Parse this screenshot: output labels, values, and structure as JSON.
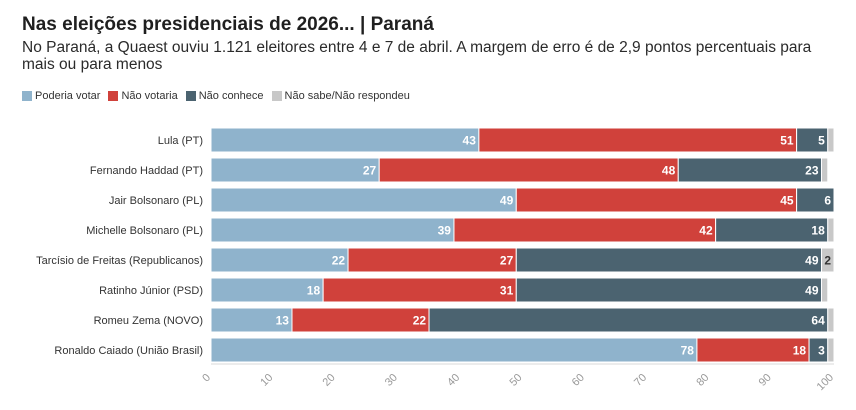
{
  "header": {
    "title": "Nas eleições presidenciais de 2026... | Paraná",
    "subtitle": "No Paraná, a Quaest ouviu 1.121 eleitores entre 4 e 7 de abril. A margem de erro é de 2,9 pontos percentuais para mais ou para menos"
  },
  "legend": [
    {
      "label": "Poderia votar",
      "color": "#8fb3cc"
    },
    {
      "label": "Não votaria",
      "color": "#d0413b"
    },
    {
      "label": "Não conhece",
      "color": "#4b6370"
    },
    {
      "label": "Não sabe/Não respondeu",
      "color": "#c8c8c8"
    }
  ],
  "chart_data": {
    "type": "bar",
    "stacked": true,
    "orientation": "horizontal",
    "title": "Nas eleições presidenciais de 2026... | Paraná",
    "categories": [
      "Lula (PT)",
      "Fernando Haddad (PT)",
      "Jair Bolsonaro (PL)",
      "Michelle Bolsonaro (PL)",
      "Tarcísio de Freitas (Republicanos)",
      "Ratinho Júnior (PSD)",
      "Romeu Zema (NOVO)",
      "Ronaldo Caiado (União Brasil)"
    ],
    "series": [
      {
        "name": "Poderia votar",
        "color": "#8fb3cc",
        "values": [
          43,
          27,
          49,
          39,
          22,
          18,
          13,
          78
        ]
      },
      {
        "name": "Não votaria",
        "color": "#d0413b",
        "values": [
          51,
          48,
          45,
          42,
          27,
          31,
          22,
          18
        ]
      },
      {
        "name": "Não conhece",
        "color": "#4b6370",
        "values": [
          5,
          23,
          6,
          18,
          49,
          49,
          64,
          3
        ]
      },
      {
        "name": "Não sabe/Não respondeu",
        "color": "#c8c8c8",
        "values": [
          1,
          1,
          0,
          1,
          2,
          1,
          1,
          1
        ]
      }
    ],
    "labels": [
      [
        "43",
        "51",
        "5",
        ""
      ],
      [
        "27",
        "48",
        "23",
        ""
      ],
      [
        "49",
        "45",
        "6",
        ""
      ],
      [
        "39",
        "42",
        "18",
        ""
      ],
      [
        "22",
        "27",
        "49",
        "2"
      ],
      [
        "18",
        "31",
        "49",
        ""
      ],
      [
        "13",
        "22",
        "64",
        ""
      ],
      [
        "78",
        "18",
        "3",
        ""
      ]
    ],
    "xlim": [
      0,
      100
    ],
    "xticks": [
      "0",
      "10",
      "20",
      "30",
      "40",
      "50",
      "60",
      "70",
      "80",
      "90",
      "100"
    ]
  }
}
